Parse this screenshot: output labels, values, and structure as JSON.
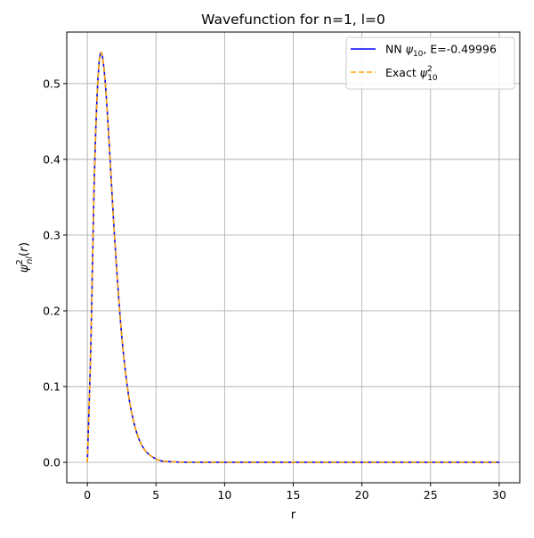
{
  "chart_data": {
    "type": "line",
    "title": "Wavefunction for n=1, l=0",
    "xlabel": "r",
    "ylabel": "ψ²nl(r)",
    "xlim": [
      -1.5,
      31.5
    ],
    "ylim": [
      -0.027,
      0.568
    ],
    "xticks": [
      0,
      5,
      10,
      15,
      20,
      25,
      30
    ],
    "yticks": [
      0.0,
      0.1,
      0.2,
      0.3,
      0.4,
      0.5
    ],
    "xtick_labels": [
      "0",
      "5",
      "10",
      "15",
      "20",
      "25",
      "30"
    ],
    "ytick_labels": [
      "0.0",
      "0.1",
      "0.2",
      "0.3",
      "0.4",
      "0.5"
    ],
    "grid": true,
    "legend_position": "top-right",
    "x": [
      0,
      0.25,
      0.5,
      0.75,
      1.0,
      1.25,
      1.5,
      2.0,
      2.5,
      3.0,
      3.5,
      4.0,
      5.0,
      6.0,
      8.0,
      10.0,
      30.0
    ],
    "series": [
      {
        "name": "NN ψ10, E=-0.49996",
        "legend_main": "NN ",
        "legend_psi": "ψ",
        "legend_sub": "10",
        "legend_tail": ", E=-0.49996",
        "color": "#0000ff",
        "style": "solid",
        "values": [
          0.0,
          0.152,
          0.368,
          0.499,
          0.541,
          0.513,
          0.448,
          0.293,
          0.168,
          0.089,
          0.045,
          0.0215,
          0.0045,
          0.0009,
          3e-05,
          0.0,
          0.0
        ]
      },
      {
        "name": "Exact ψ²10",
        "legend_main": "Exact ",
        "legend_psi": "ψ",
        "legend_sup": "2",
        "legend_sub": "10",
        "color": "#ffa500",
        "style": "dashed",
        "values": [
          0.0,
          0.152,
          0.368,
          0.499,
          0.541,
          0.513,
          0.448,
          0.293,
          0.168,
          0.089,
          0.045,
          0.0215,
          0.0045,
          0.0009,
          3e-05,
          0.0,
          0.0
        ]
      }
    ]
  }
}
